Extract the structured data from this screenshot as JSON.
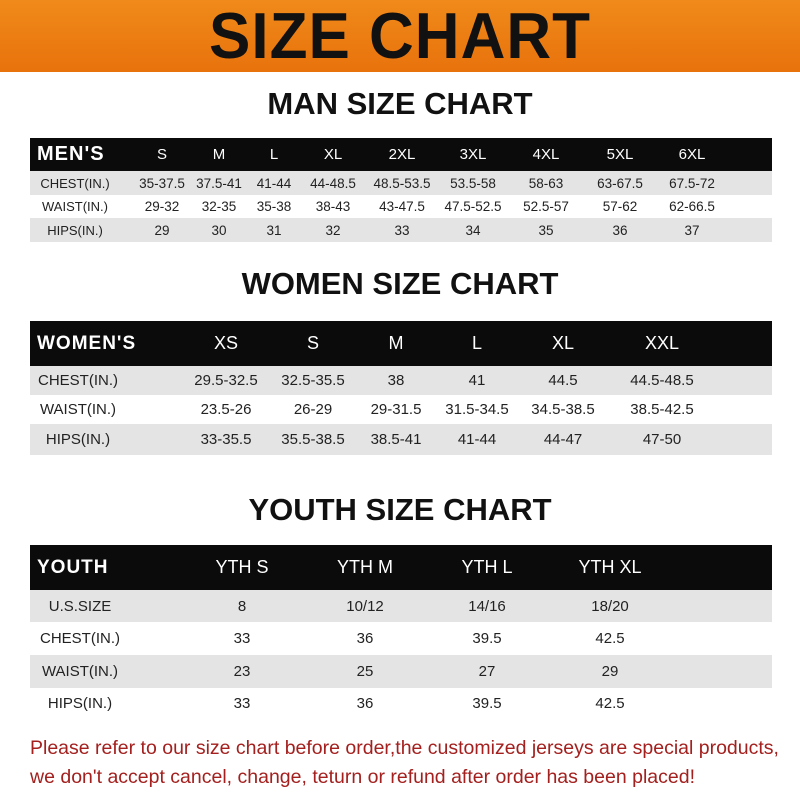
{
  "banner": {
    "title": "SIZE CHART",
    "color": "#ee7d12"
  },
  "men": {
    "title": "MAN SIZE CHART",
    "header": "MEN'S",
    "sizes": [
      "S",
      "M",
      "L",
      "XL",
      "2XL",
      "3XL",
      "4XL",
      "5XL",
      "6XL"
    ],
    "rows": [
      {
        "label": "CHEST(IN.)",
        "values": [
          "35-37.5",
          "37.5-41",
          "41-44",
          "44-48.5",
          "48.5-53.5",
          "53.5-58",
          "58-63",
          "63-67.5",
          "67.5-72"
        ]
      },
      {
        "label": "WAIST(IN.)",
        "values": [
          "29-32",
          "32-35",
          "35-38",
          "38-43",
          "43-47.5",
          "47.5-52.5",
          "52.5-57",
          "57-62",
          "62-66.5"
        ]
      },
      {
        "label": "HIPS(IN.)",
        "values": [
          "29",
          "30",
          "31",
          "32",
          "33",
          "34",
          "35",
          "36",
          "37"
        ]
      }
    ]
  },
  "women": {
    "title": "WOMEN SIZE CHART",
    "header": "WOMEN'S",
    "sizes": [
      "XS",
      "S",
      "M",
      "L",
      "XL",
      "XXL"
    ],
    "rows": [
      {
        "label": "CHEST(IN.)",
        "values": [
          "29.5-32.5",
          "32.5-35.5",
          "38",
          "41",
          "44.5",
          "44.5-48.5"
        ]
      },
      {
        "label": "WAIST(IN.)",
        "values": [
          "23.5-26",
          "26-29",
          "29-31.5",
          "31.5-34.5",
          "34.5-38.5",
          "38.5-42.5"
        ]
      },
      {
        "label": "HIPS(IN.)",
        "values": [
          "33-35.5",
          "35.5-38.5",
          "38.5-41",
          "41-44",
          "44-47",
          "47-50"
        ]
      }
    ]
  },
  "youth": {
    "title": "YOUTH SIZE CHART",
    "header": "YOUTH",
    "sizes": [
      "YTH S",
      "YTH M",
      "YTH L",
      "YTH XL"
    ],
    "rows": [
      {
        "label": "U.S.SIZE",
        "values": [
          "8",
          "10/12",
          "14/16",
          "18/20"
        ]
      },
      {
        "label": "CHEST(IN.)",
        "values": [
          "33",
          "36",
          "39.5",
          "42.5"
        ]
      },
      {
        "label": "WAIST(IN.)",
        "values": [
          "23",
          "25",
          "27",
          "29"
        ]
      },
      {
        "label": "HIPS(IN.)",
        "values": [
          "33",
          "36",
          "39.5",
          "42.5"
        ]
      }
    ]
  },
  "notice": {
    "line1": "Please refer to our size chart before order,the customized jerseys are special products,",
    "line2": "we don't accept cancel, change, teturn or refund after order has been placed!",
    "color": "#a3201e"
  }
}
